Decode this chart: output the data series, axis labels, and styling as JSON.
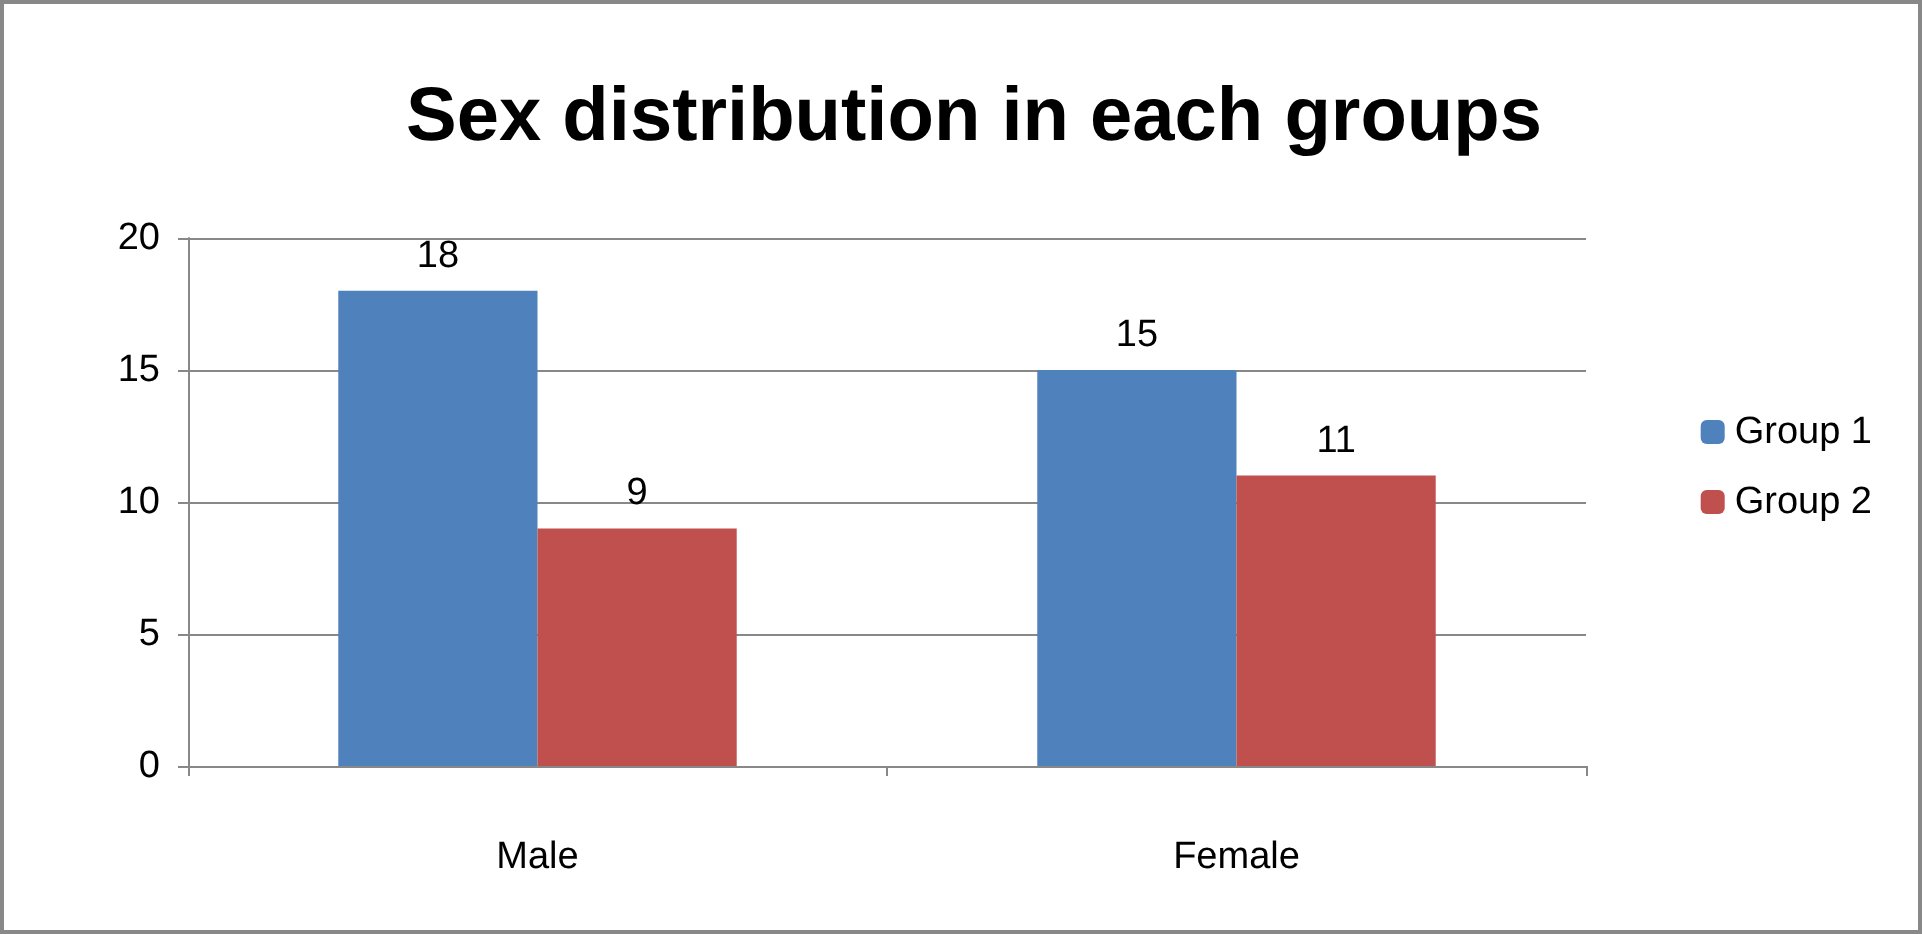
{
  "chart_data": {
    "type": "bar",
    "title": "Sex distribution in each groups",
    "categories": [
      "Male",
      "Female"
    ],
    "series": [
      {
        "name": "Group 1",
        "color": "#4f81bd",
        "values": [
          18,
          15
        ]
      },
      {
        "name": "Group 2",
        "color": "#c0504d",
        "values": [
          9,
          11
        ]
      }
    ],
    "ylim": [
      0,
      20
    ],
    "yticks": [
      0,
      5,
      10,
      15,
      20
    ],
    "grid": "y",
    "legend": "right",
    "data_labels": true
  }
}
